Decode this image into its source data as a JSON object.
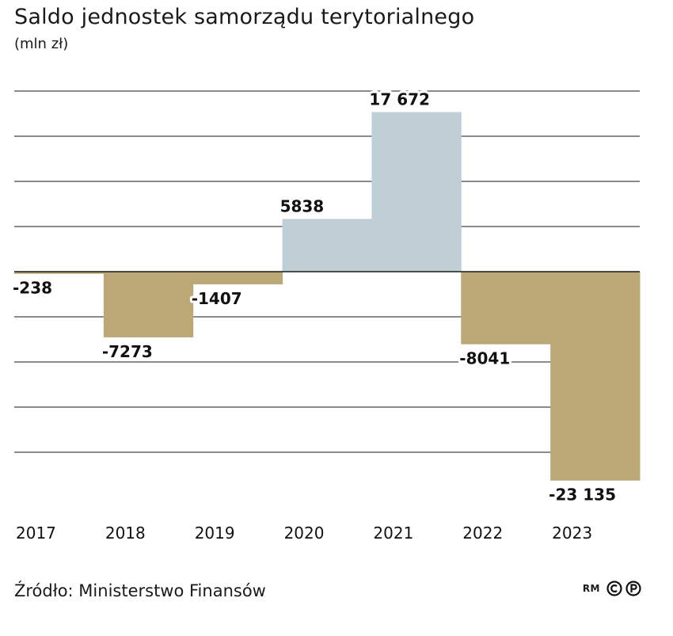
{
  "header": {
    "title": "Saldo jednostek samorządu terytorialnego",
    "subtitle": "(mln zł)"
  },
  "footer": {
    "source": "Źródło: Ministerstwo Finansów",
    "author": "RM"
  },
  "colors": {
    "negative": "#bba876",
    "positive": "#c0cfd5",
    "grid": "#1a1a1a",
    "text": "#111111"
  },
  "chart_data": {
    "type": "bar",
    "categories": [
      "2017",
      "2018",
      "2019",
      "2020",
      "2021",
      "2022",
      "2023"
    ],
    "values": [
      -238,
      -7273,
      -1407,
      5838,
      17672,
      -8041,
      -23135
    ],
    "value_labels": [
      "-238",
      "-7273",
      "-1407",
      "5838",
      "17 672",
      "-8041",
      "-23 135"
    ],
    "title": "Saldo jednostek samorządu terytorialnego",
    "subtitle": "(mln zł)",
    "xlabel": "",
    "ylabel": "",
    "ylim": [
      -25000,
      20000
    ],
    "ytick_step": 5000,
    "grid": true,
    "legend": "none"
  }
}
